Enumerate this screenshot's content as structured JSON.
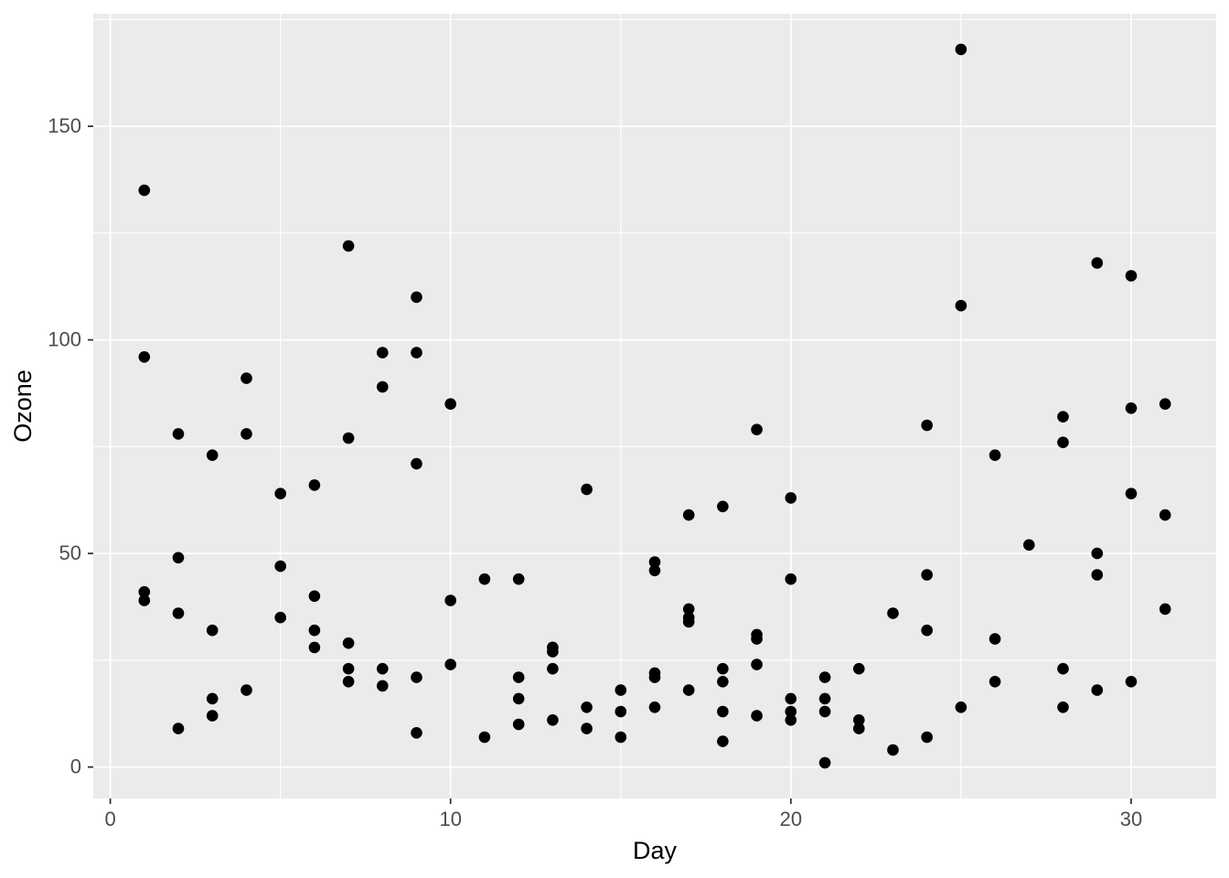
{
  "figure": {
    "background": "#FFFFFF"
  },
  "chart_data": {
    "type": "scatter",
    "title": "",
    "xlabel": "Day",
    "ylabel": "Ozone",
    "x_field": "Day",
    "y_field": "Ozone",
    "xlim": [
      -0.5,
      32.5
    ],
    "ylim": [
      -7.35,
      176.35
    ],
    "x_major_ticks": [
      0,
      10,
      20,
      30
    ],
    "y_major_ticks": [
      0,
      50,
      100,
      150
    ],
    "x_minor_ticks": [
      5,
      15,
      25
    ],
    "y_minor_ticks": [
      25,
      75,
      125,
      175
    ],
    "grid": "major+minor",
    "legend_position": "none",
    "style": {
      "panel_background": "#EBEBEB",
      "gridline_color": "#FFFFFF",
      "point_color": "#000000",
      "point_radius_px": 6.3,
      "tick_label_color": "#4D4D4D",
      "tick_mark_color": "#333333",
      "axis_title_color": "#000000"
    },
    "points": [
      [
        1,
        41
      ],
      [
        2,
        36
      ],
      [
        3,
        12
      ],
      [
        4,
        18
      ],
      [
        6,
        28
      ],
      [
        7,
        23
      ],
      [
        8,
        19
      ],
      [
        9,
        8
      ],
      [
        11,
        7
      ],
      [
        12,
        16
      ],
      [
        13,
        11
      ],
      [
        14,
        14
      ],
      [
        15,
        18
      ],
      [
        16,
        14
      ],
      [
        17,
        34
      ],
      [
        18,
        6
      ],
      [
        19,
        30
      ],
      [
        20,
        11
      ],
      [
        21,
        1
      ],
      [
        22,
        11
      ],
      [
        23,
        4
      ],
      [
        24,
        32
      ],
      [
        28,
        23
      ],
      [
        29,
        45
      ],
      [
        30,
        115
      ],
      [
        31,
        37
      ],
      [
        7,
        29
      ],
      [
        9,
        71
      ],
      [
        10,
        39
      ],
      [
        13,
        23
      ],
      [
        16,
        21
      ],
      [
        17,
        37
      ],
      [
        18,
        20
      ],
      [
        19,
        12
      ],
      [
        20,
        13
      ],
      [
        1,
        135
      ],
      [
        2,
        49
      ],
      [
        3,
        32
      ],
      [
        5,
        64
      ],
      [
        6,
        40
      ],
      [
        7,
        77
      ],
      [
        8,
        97
      ],
      [
        9,
        97
      ],
      [
        10,
        85
      ],
      [
        12,
        10
      ],
      [
        13,
        27
      ],
      [
        15,
        7
      ],
      [
        16,
        48
      ],
      [
        17,
        35
      ],
      [
        18,
        61
      ],
      [
        19,
        79
      ],
      [
        20,
        63
      ],
      [
        21,
        16
      ],
      [
        24,
        80
      ],
      [
        25,
        108
      ],
      [
        26,
        20
      ],
      [
        27,
        52
      ],
      [
        28,
        82
      ],
      [
        29,
        50
      ],
      [
        30,
        64
      ],
      [
        31,
        59
      ],
      [
        1,
        39
      ],
      [
        2,
        9
      ],
      [
        3,
        16
      ],
      [
        4,
        78
      ],
      [
        5,
        35
      ],
      [
        6,
        66
      ],
      [
        7,
        122
      ],
      [
        8,
        89
      ],
      [
        9,
        110
      ],
      [
        12,
        44
      ],
      [
        13,
        28
      ],
      [
        14,
        65
      ],
      [
        16,
        22
      ],
      [
        17,
        59
      ],
      [
        18,
        23
      ],
      [
        19,
        31
      ],
      [
        20,
        44
      ],
      [
        21,
        21
      ],
      [
        22,
        9
      ],
      [
        24,
        45
      ],
      [
        25,
        168
      ],
      [
        26,
        73
      ],
      [
        28,
        76
      ],
      [
        29,
        118
      ],
      [
        30,
        84
      ],
      [
        31,
        85
      ],
      [
        1,
        96
      ],
      [
        2,
        78
      ],
      [
        3,
        73
      ],
      [
        4,
        91
      ],
      [
        5,
        47
      ],
      [
        6,
        32
      ],
      [
        7,
        20
      ],
      [
        8,
        23
      ],
      [
        9,
        21
      ],
      [
        10,
        24
      ],
      [
        11,
        44
      ],
      [
        12,
        21
      ],
      [
        13,
        28
      ],
      [
        14,
        9
      ],
      [
        15,
        13
      ],
      [
        16,
        46
      ],
      [
        17,
        18
      ],
      [
        18,
        13
      ],
      [
        19,
        24
      ],
      [
        20,
        16
      ],
      [
        21,
        13
      ],
      [
        22,
        23
      ],
      [
        23,
        36
      ],
      [
        24,
        7
      ],
      [
        25,
        14
      ],
      [
        26,
        30
      ],
      [
        28,
        14
      ],
      [
        29,
        18
      ],
      [
        30,
        20
      ]
    ]
  }
}
